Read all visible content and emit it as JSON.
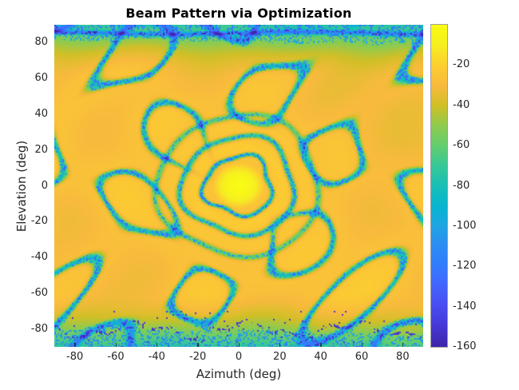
{
  "chart_data": {
    "type": "heatmap",
    "title": "Beam Pattern via Optimization",
    "xlabel": "Azimuth (deg)",
    "ylabel": "Elevation (deg)",
    "x_range_deg": [
      -90,
      90
    ],
    "y_range_deg": [
      -90,
      90
    ],
    "x_ticks": [
      -80,
      -60,
      -40,
      -20,
      0,
      20,
      40,
      60,
      80
    ],
    "y_ticks": [
      80,
      60,
      40,
      20,
      0,
      -20,
      -40,
      -60,
      -80
    ],
    "grid": false,
    "colorbar": {
      "position": "right",
      "ticks": [
        -20,
        -40,
        -60,
        -80,
        -100,
        -120,
        -140,
        -160
      ],
      "range_db": [
        -160,
        0
      ],
      "colormap": "parula",
      "stops": [
        "#3e26a8",
        "#4537d5",
        "#484df0",
        "#4563fd",
        "#327cfc",
        "#2d8cf3",
        "#20a5e3",
        "#08b5d0",
        "#19bfb6",
        "#37c897",
        "#64cd6f",
        "#8fcb4e",
        "#d1bf27",
        "#f8ba3d",
        "#fccf30",
        "#f6ef20",
        "#f9fb15"
      ]
    },
    "pattern": {
      "description": "Optimized array beam pattern: mainlobe at boresight, concentric null rings, quasi-periodic sidelobe null contours, deep null line near top edge, speckled deep nulls near bottom edge",
      "peak_db": 0,
      "peak_azimuth_deg": 0,
      "peak_elevation_deg": 0,
      "mainlobe_radius_deg": 12.6,
      "null_rings_deg": [
        16.5,
        27.5,
        39.5
      ],
      "null_ring_depths_db": [
        60,
        52,
        44
      ],
      "sidelobe_plateau_db": -26,
      "sidelobe_null_depth_db": -58,
      "edge_band_db": -45,
      "edge_band_start_deg": 58,
      "top_null_elevation_deg": 85.3,
      "bottom_speckle_elevation_deg": -80.5
    }
  }
}
